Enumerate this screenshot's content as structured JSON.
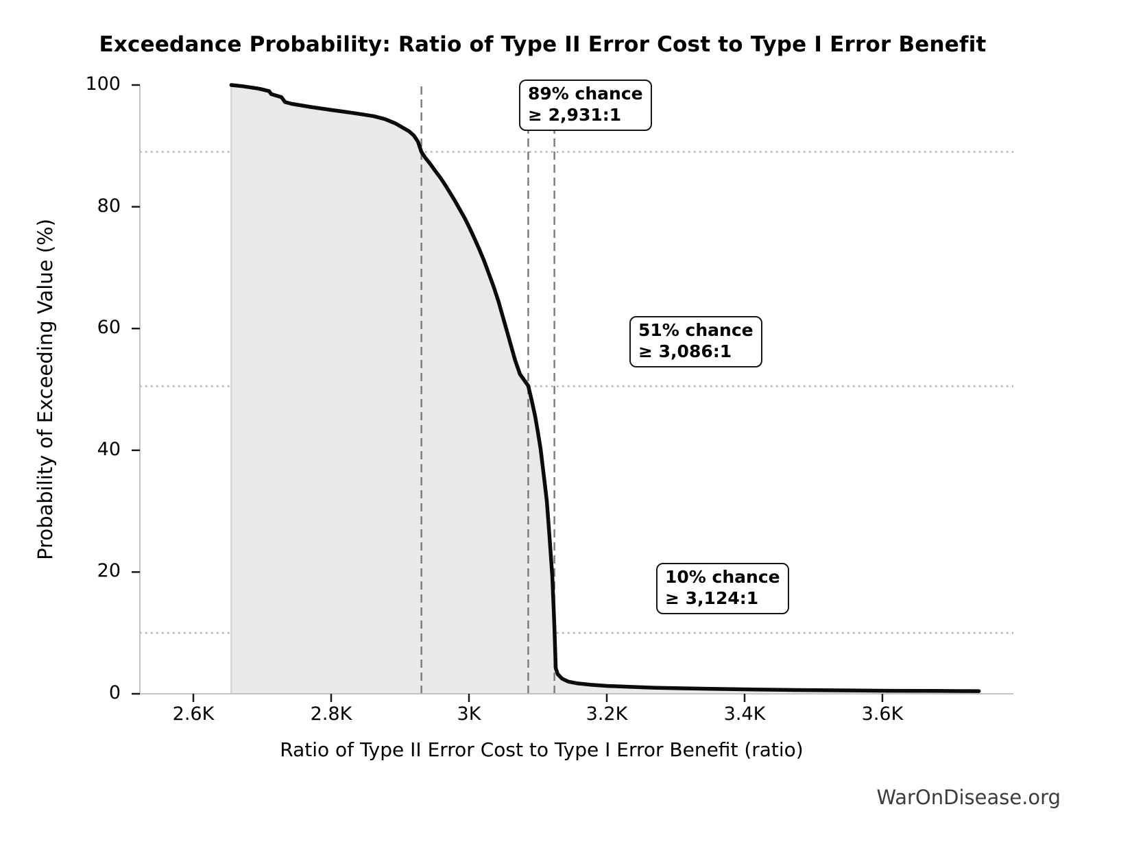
{
  "watermark": "WarOnDisease.org",
  "chart_data": {
    "type": "area",
    "title": "Exceedance Probability: Ratio of Type II Error Cost to Type I Error Benefit",
    "xlabel": "Ratio of Type II Error Cost to Type I Error Benefit (ratio)",
    "ylabel": "Probability of Exceeding Value (%)",
    "xlim": [
      2522,
      3790
    ],
    "ylim": [
      0,
      100
    ],
    "grid": "dotted horizontal reference lines only",
    "legend": "none",
    "line_color": "#0b0b0b",
    "fill_color": "#e9e9e9",
    "x_ticks": [
      {
        "label": "2.6K",
        "value": 2600
      },
      {
        "label": "2.8K",
        "value": 2800
      },
      {
        "label": "3K",
        "value": 3000
      },
      {
        "label": "3.2K",
        "value": 3200
      },
      {
        "label": "3.4K",
        "value": 3400
      },
      {
        "label": "3.6K",
        "value": 3600
      }
    ],
    "y_ticks": [
      {
        "label": "0",
        "value": 0
      },
      {
        "label": "20",
        "value": 20
      },
      {
        "label": "40",
        "value": 40
      },
      {
        "label": "60",
        "value": 60
      },
      {
        "label": "80",
        "value": 80
      },
      {
        "label": "100",
        "value": 100
      }
    ],
    "guides": {
      "dashed_vlines_ratio": [
        2931,
        3086,
        3124
      ],
      "dotted_hlines_percent": [
        89,
        50.5,
        10
      ]
    },
    "annotations": [
      {
        "line1": "89% chance",
        "line2": "≥ 2,931:1",
        "percent": 89,
        "ratio": 2931
      },
      {
        "line1": "51% chance",
        "line2": "≥ 3,086:1",
        "percent": 51,
        "ratio": 3086
      },
      {
        "line1": "10% chance",
        "line2": "≥ 3,124:1",
        "percent": 10,
        "ratio": 3124
      }
    ],
    "series": [
      {
        "name": "exceedance-probability",
        "points": [
          [
            2655,
            100
          ],
          [
            2672,
            99.8
          ],
          [
            2695,
            99.4
          ],
          [
            2710,
            99.0
          ],
          [
            2713,
            98.5
          ],
          [
            2728,
            98.0
          ],
          [
            2733,
            97.2
          ],
          [
            2743,
            96.9
          ],
          [
            2770,
            96.4
          ],
          [
            2800,
            95.9
          ],
          [
            2832,
            95.4
          ],
          [
            2861,
            94.9
          ],
          [
            2878,
            94.4
          ],
          [
            2893,
            93.7
          ],
          [
            2904,
            93.0
          ],
          [
            2913,
            92.4
          ],
          [
            2920,
            91.7
          ],
          [
            2926,
            90.7
          ],
          [
            2931,
            89.0
          ],
          [
            2937,
            88.0
          ],
          [
            2944,
            87.0
          ],
          [
            2951,
            85.9
          ],
          [
            2959,
            84.7
          ],
          [
            2966,
            83.5
          ],
          [
            2973,
            82.2
          ],
          [
            2980,
            80.9
          ],
          [
            2987,
            79.5
          ],
          [
            2994,
            78.1
          ],
          [
            3001,
            76.5
          ],
          [
            3008,
            74.8
          ],
          [
            3015,
            73.0
          ],
          [
            3022,
            71.1
          ],
          [
            3029,
            69.0
          ],
          [
            3036,
            66.8
          ],
          [
            3043,
            64.4
          ],
          [
            3049,
            62.0
          ],
          [
            3055,
            59.6
          ],
          [
            3061,
            57.2
          ],
          [
            3067,
            54.8
          ],
          [
            3074,
            52.5
          ],
          [
            3081,
            51.4
          ],
          [
            3086,
            50.6
          ],
          [
            3091,
            48.2
          ],
          [
            3096,
            45.6
          ],
          [
            3100,
            43.0
          ],
          [
            3104,
            40.2
          ],
          [
            3107,
            37.4
          ],
          [
            3110,
            34.6
          ],
          [
            3113,
            31.6
          ],
          [
            3115,
            28.6
          ],
          [
            3117,
            25.6
          ],
          [
            3119,
            22.4
          ],
          [
            3121,
            19.2
          ],
          [
            3122,
            16.4
          ],
          [
            3123,
            13.8
          ],
          [
            3124,
            11.0
          ],
          [
            3125,
            7.5
          ],
          [
            3126,
            4.2
          ],
          [
            3129,
            3.2
          ],
          [
            3135,
            2.5
          ],
          [
            3144,
            2.0
          ],
          [
            3158,
            1.7
          ],
          [
            3176,
            1.5
          ],
          [
            3200,
            1.3
          ],
          [
            3232,
            1.15
          ],
          [
            3268,
            1.0
          ],
          [
            3310,
            0.9
          ],
          [
            3360,
            0.8
          ],
          [
            3415,
            0.7
          ],
          [
            3475,
            0.62
          ],
          [
            3540,
            0.56
          ],
          [
            3610,
            0.5
          ],
          [
            3675,
            0.47
          ],
          [
            3740,
            0.44
          ]
        ]
      }
    ]
  }
}
